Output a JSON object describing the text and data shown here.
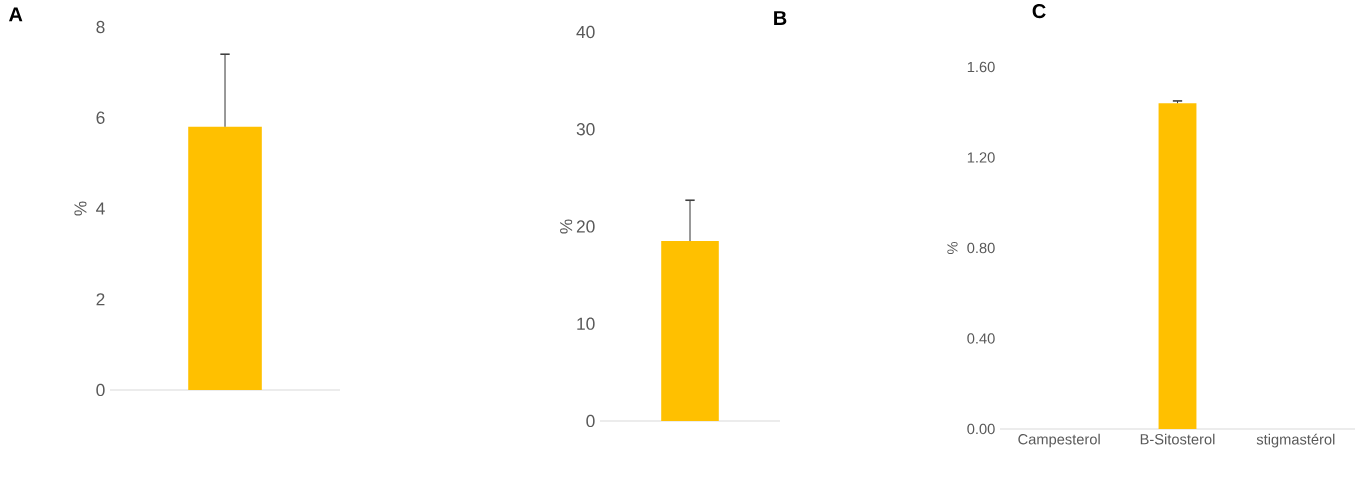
{
  "chart_data": [
    {
      "type": "bar",
      "title": "A",
      "ylabel": "%",
      "categories": [
        null
      ],
      "values": [
        5.8
      ],
      "errors": [
        1.6
      ],
      "color": "#ffc000",
      "ylim": [
        0,
        8
      ],
      "yticks": [
        0,
        2,
        4,
        6,
        8
      ]
    },
    {
      "type": "bar",
      "title": "B",
      "ylabel": "%",
      "categories": [
        null
      ],
      "values": [
        18.5
      ],
      "errors": [
        4.2
      ],
      "color": "#ffc000",
      "ylim": [
        0,
        40
      ],
      "yticks": [
        0,
        10,
        20,
        30,
        40
      ]
    },
    {
      "type": "bar",
      "title": "C",
      "ylabel": "%",
      "categories": [
        "Campesterol",
        "B-Sitosterol",
        "stigmastérol"
      ],
      "values": [
        0,
        1.44,
        0
      ],
      "errors": [
        null,
        0.01,
        null
      ],
      "color": "#ffc000",
      "ylim": [
        0,
        1.6
      ],
      "yticks": [
        {
          "value": 0,
          "label": "0.00"
        },
        {
          "value": 0.4,
          "label": "0.40"
        },
        {
          "value": 0.8,
          "label": "0.80"
        },
        {
          "value": 1.2,
          "label": "1.20"
        },
        {
          "value": 1.6,
          "label": "1.60"
        }
      ]
    }
  ]
}
